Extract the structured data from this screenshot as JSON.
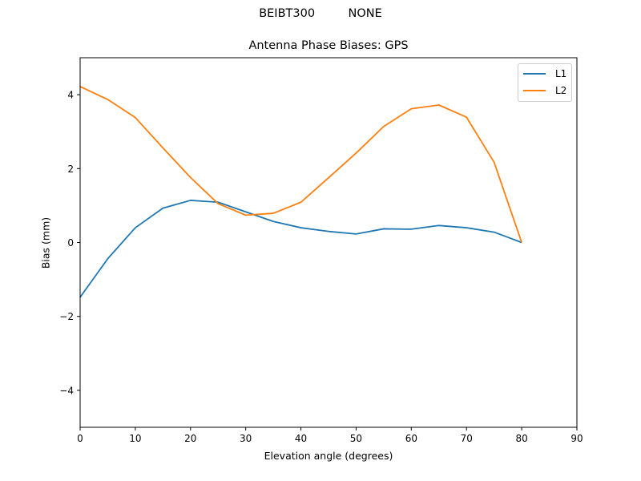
{
  "chart_data": {
    "type": "line",
    "suptitle": "BEIBT300         NONE",
    "title": "Antenna Phase Biases: GPS",
    "xlabel": "Elevation angle (degrees)",
    "ylabel": "Bias (mm)",
    "xlim": [
      0,
      90
    ],
    "ylim": [
      -5,
      5
    ],
    "xticks": [
      0,
      10,
      20,
      30,
      40,
      50,
      60,
      70,
      80,
      90
    ],
    "yticks": [
      -4,
      -2,
      0,
      2,
      4
    ],
    "ytick_labels": [
      "−4",
      "−2",
      "0",
      "2",
      "4"
    ],
    "grid": false,
    "legend_position": "upper right",
    "x": [
      0,
      5,
      10,
      15,
      20,
      25,
      30,
      35,
      40,
      45,
      50,
      55,
      60,
      65,
      70,
      75,
      80
    ],
    "series": [
      {
        "name": "L1",
        "color": "#1f77b4",
        "values": [
          -1.48,
          -0.44,
          0.4,
          0.93,
          1.14,
          1.09,
          0.83,
          0.57,
          0.4,
          0.3,
          0.23,
          0.37,
          0.36,
          0.46,
          0.4,
          0.28,
          0.0
        ]
      },
      {
        "name": "L2",
        "color": "#ff7f0e",
        "values": [
          4.22,
          3.87,
          3.38,
          2.56,
          1.76,
          1.05,
          0.74,
          0.79,
          1.09,
          1.75,
          2.42,
          3.14,
          3.62,
          3.72,
          3.39,
          2.17,
          0.0
        ]
      }
    ]
  }
}
